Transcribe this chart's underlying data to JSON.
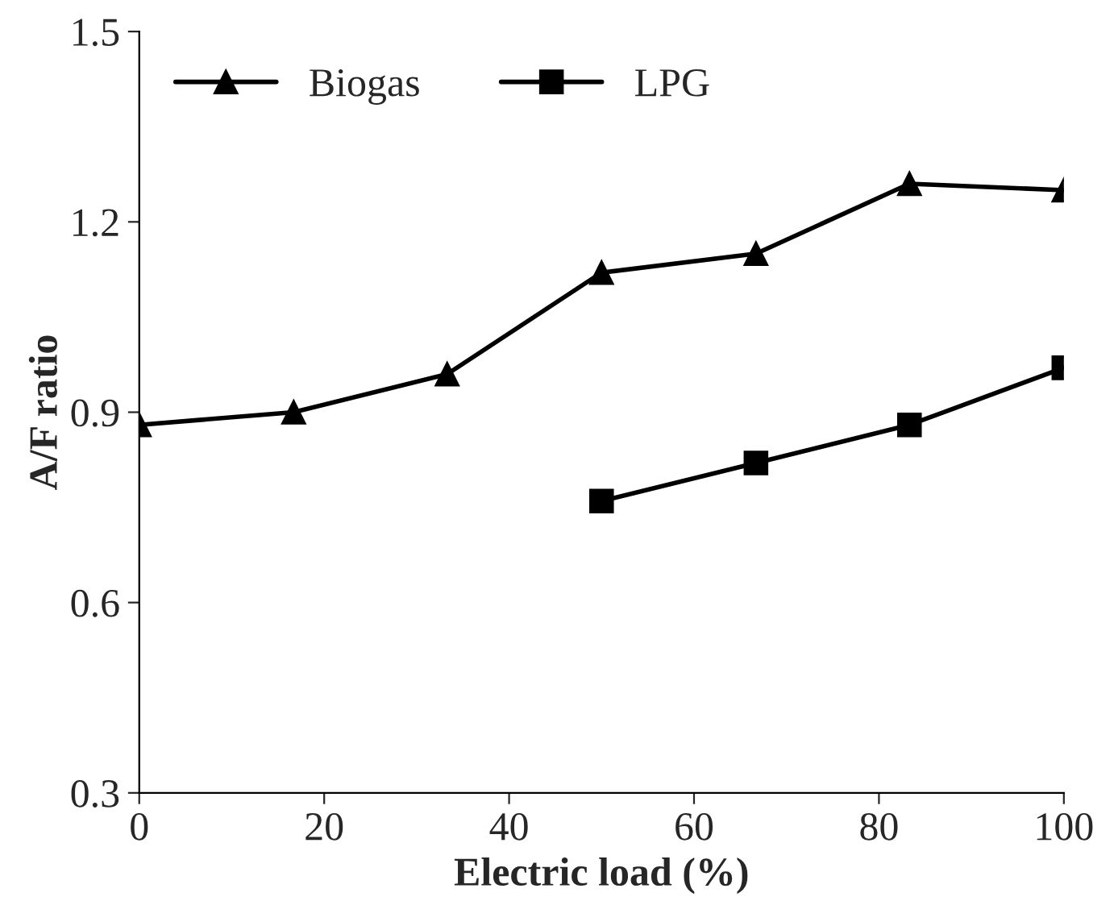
{
  "chart_data": {
    "type": "line",
    "xlabel": "Electric load (%)",
    "ylabel": "A/F ratio",
    "xlim": [
      0,
      100
    ],
    "xticks": [
      0,
      20,
      40,
      60,
      80,
      100
    ],
    "ylim": [
      0.3,
      1.5
    ],
    "yticks": [
      {
        "value": 0.3,
        "label": "0.3"
      },
      {
        "value": 0.6,
        "label": "0.6"
      },
      {
        "value": 0.9,
        "label": "0.9"
      },
      {
        "value": 1.2,
        "label": "1.2"
      },
      {
        "value": 1.5,
        "label": "1.5"
      }
    ],
    "grid": false,
    "legend": "top left",
    "line_style": "solid",
    "series": [
      {
        "name": "Biogas",
        "color": "#000000",
        "marker": "triangle",
        "x": [
          0,
          16.7,
          33.3,
          50,
          66.7,
          83.3,
          100
        ],
        "values": [
          0.88,
          0.9,
          0.96,
          1.12,
          1.15,
          1.26,
          1.25
        ]
      },
      {
        "name": "LPG",
        "color": "#000000",
        "marker": "square",
        "x": [
          50,
          66.7,
          83.3,
          100
        ],
        "values": [
          0.76,
          0.82,
          0.88,
          0.97
        ]
      }
    ]
  }
}
